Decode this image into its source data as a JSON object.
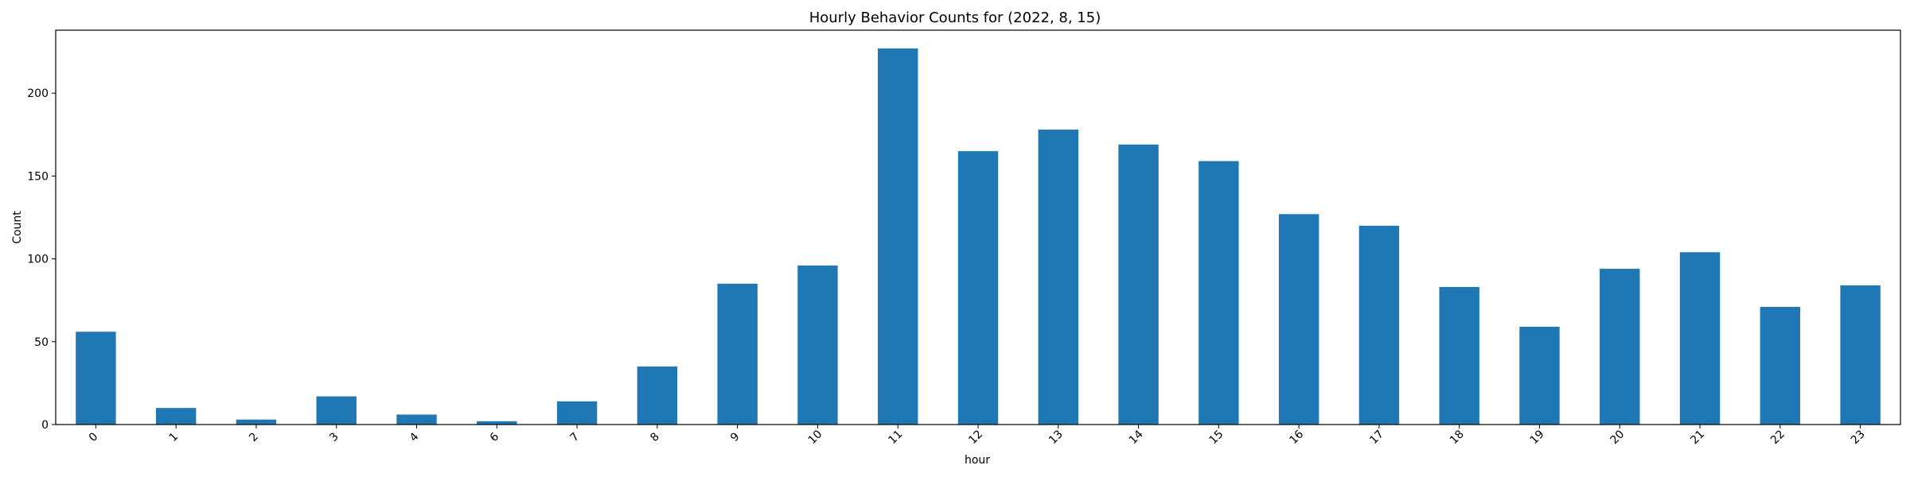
{
  "chart_data": {
    "type": "bar",
    "title": "Hourly Behavior Counts for (2022, 8, 15)",
    "xlabel": "hour",
    "ylabel": "Count",
    "categories": [
      "0",
      "1",
      "2",
      "3",
      "4",
      "6",
      "7",
      "8",
      "9",
      "10",
      "11",
      "12",
      "13",
      "14",
      "15",
      "16",
      "17",
      "18",
      "19",
      "20",
      "21",
      "22",
      "23"
    ],
    "values": [
      56,
      10,
      3,
      17,
      6,
      2,
      14,
      35,
      85,
      96,
      227,
      165,
      178,
      169,
      159,
      127,
      120,
      83,
      59,
      94,
      104,
      71,
      84
    ],
    "ylim": [
      0,
      238
    ],
    "yticks": [
      0,
      50,
      100,
      150,
      200
    ],
    "grid": false,
    "legend": "none",
    "bar_color": "#1f77b4"
  }
}
